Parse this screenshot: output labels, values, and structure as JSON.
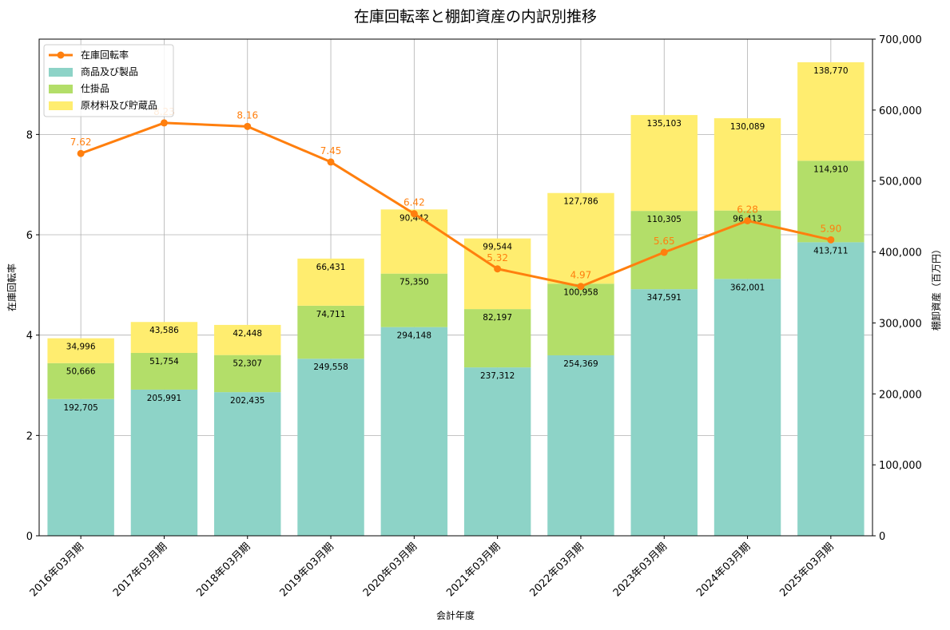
{
  "chart_data": {
    "type": "bar",
    "stacked": true,
    "title": "在庫回転率と棚卸資産の内訳別推移",
    "xlabel": "会計年度",
    "ylabel_left": "在庫回転率",
    "ylabel_right": "棚卸資産（百万円）",
    "ylim_left": [
      0,
      9.9
    ],
    "ylim_right": [
      0,
      700000
    ],
    "yticks_left": [
      0,
      2,
      4,
      6,
      8
    ],
    "yticks_right": [
      0,
      100000,
      200000,
      300000,
      400000,
      500000,
      600000,
      700000
    ],
    "ytick_labels_right": [
      "0",
      "100,000",
      "200,000",
      "300,000",
      "400,000",
      "500,000",
      "600,000",
      "700,000"
    ],
    "grid": true,
    "legend_position": "top-left",
    "categories": [
      "2016年03月期",
      "2017年03月期",
      "2018年03月期",
      "2019年03月期",
      "2020年03月期",
      "2021年03月期",
      "2022年03月期",
      "2023年03月期",
      "2024年03月期",
      "2025年03月期"
    ],
    "series": [
      {
        "name": "商品及び製品",
        "type": "bar",
        "axis": "right",
        "color": "#8dd3c7",
        "values": [
          192705,
          205991,
          202435,
          249558,
          294148,
          237312,
          254369,
          347591,
          362001,
          413711
        ],
        "labels": [
          "192,705",
          "205,991",
          "202,435",
          "249,558",
          "294,148",
          "237,312",
          "254,369",
          "347,591",
          "362,001",
          "413,711"
        ]
      },
      {
        "name": "仕掛品",
        "type": "bar",
        "axis": "right",
        "color": "#b3de69",
        "values": [
          50666,
          51754,
          52307,
          74711,
          75350,
          82197,
          100958,
          110305,
          96413,
          114910
        ],
        "labels": [
          "50,666",
          "51,754",
          "52,307",
          "74,711",
          "75,350",
          "82,197",
          "100,958",
          "110,305",
          "96,413",
          "114,910"
        ]
      },
      {
        "name": "原材料及び貯蔵品",
        "type": "bar",
        "axis": "right",
        "color": "#ffed6f",
        "values": [
          34996,
          43586,
          42448,
          66431,
          90442,
          99544,
          127786,
          135103,
          130089,
          138770
        ],
        "labels": [
          "34,996",
          "43,586",
          "42,448",
          "66,431",
          "90,442",
          "99,544",
          "127,786",
          "135,103",
          "130,089",
          "138,770"
        ]
      },
      {
        "name": "在庫回転率",
        "type": "line",
        "axis": "left",
        "color": "#ff7f0e",
        "values": [
          7.62,
          8.23,
          8.16,
          7.45,
          6.42,
          5.32,
          4.97,
          5.65,
          6.28,
          5.9
        ],
        "labels": [
          "7.62",
          "8.23",
          "8.16",
          "7.45",
          "6.42",
          "5.32",
          "4.97",
          "5.65",
          "6.28",
          "5.90"
        ]
      }
    ]
  }
}
